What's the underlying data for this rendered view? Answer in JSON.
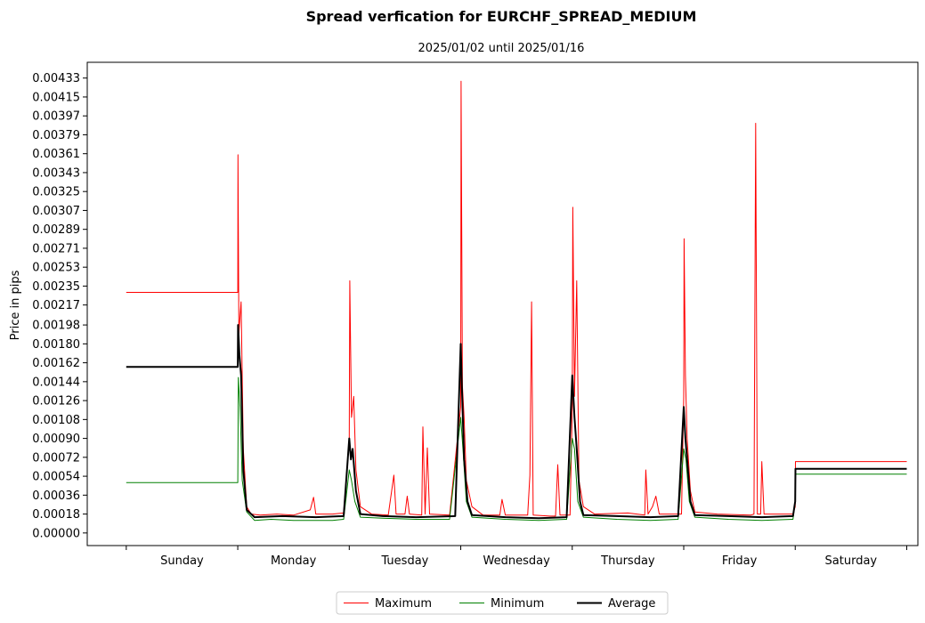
{
  "chart_data": {
    "type": "line",
    "title": "Spread verfication for EURCHF_SPREAD_MEDIUM",
    "subtitle": "2025/01/02 until 2025/01/16",
    "xlabel": "",
    "ylabel": "Price in pips",
    "x_range": [
      -0.35,
      7.1
    ],
    "ylim": [
      -0.00012,
      0.00448
    ],
    "grid": false,
    "legend_placement": "bottom-center",
    "yticks": [
      "0.00000",
      "0.00018",
      "0.00036",
      "0.00054",
      "0.00072",
      "0.00090",
      "0.00108",
      "0.00126",
      "0.00144",
      "0.00162",
      "0.00180",
      "0.00198",
      "0.00217",
      "0.00235",
      "0.00253",
      "0.00271",
      "0.00289",
      "0.00307",
      "0.00325",
      "0.00343",
      "0.00361",
      "0.00379",
      "0.00397",
      "0.00415",
      "0.00433"
    ],
    "categories": [
      "Sunday",
      "Monday",
      "Tuesday",
      "Wednesday",
      "Thursday",
      "Friday",
      "Saturday"
    ],
    "series": [
      {
        "name": "Maximum",
        "color": "#ff0000",
        "points": [
          [
            0,
            0.00229
          ],
          [
            1,
            0.00229
          ],
          [
            1.002,
            0.0036
          ],
          [
            1.01,
            0.0019
          ],
          [
            1.03,
            0.0022
          ],
          [
            1.05,
            0.0008
          ],
          [
            1.08,
            0.00025
          ],
          [
            1.12,
            0.00018
          ],
          [
            1.2,
            0.00017
          ],
          [
            1.35,
            0.00018
          ],
          [
            1.5,
            0.00017
          ],
          [
            1.65,
            0.00022
          ],
          [
            1.68,
            0.00034
          ],
          [
            1.7,
            0.00018
          ],
          [
            1.85,
            0.00018
          ],
          [
            1.95,
            0.00019
          ],
          [
            2.0,
            0.0009
          ],
          [
            2.005,
            0.0024
          ],
          [
            2.02,
            0.0011
          ],
          [
            2.04,
            0.0013
          ],
          [
            2.06,
            0.0006
          ],
          [
            2.1,
            0.00025
          ],
          [
            2.2,
            0.00018
          ],
          [
            2.35,
            0.00017
          ],
          [
            2.4,
            0.00055
          ],
          [
            2.42,
            0.00018
          ],
          [
            2.5,
            0.00018
          ],
          [
            2.52,
            0.00035
          ],
          [
            2.54,
            0.00018
          ],
          [
            2.65,
            0.00017
          ],
          [
            2.66,
            0.00101
          ],
          [
            2.68,
            0.00018
          ],
          [
            2.7,
            0.00081
          ],
          [
            2.72,
            0.00018
          ],
          [
            2.9,
            0.00017
          ],
          [
            3.0,
            0.0012
          ],
          [
            3.003,
            0.0043
          ],
          [
            3.015,
            0.0014
          ],
          [
            3.03,
            0.0011
          ],
          [
            3.05,
            0.0005
          ],
          [
            3.1,
            0.00025
          ],
          [
            3.2,
            0.00017
          ],
          [
            3.35,
            0.00017
          ],
          [
            3.37,
            0.00032
          ],
          [
            3.4,
            0.00017
          ],
          [
            3.6,
            0.00017
          ],
          [
            3.62,
            0.00055
          ],
          [
            3.635,
            0.0022
          ],
          [
            3.65,
            0.00017
          ],
          [
            3.8,
            0.00016
          ],
          [
            3.85,
            0.00016
          ],
          [
            3.87,
            0.00065
          ],
          [
            3.89,
            0.00017
          ],
          [
            3.98,
            0.00017
          ],
          [
            4.0,
            0.0012
          ],
          [
            4.005,
            0.0031
          ],
          [
            4.02,
            0.0013
          ],
          [
            4.04,
            0.0024
          ],
          [
            4.06,
            0.0005
          ],
          [
            4.1,
            0.00025
          ],
          [
            4.2,
            0.00018
          ],
          [
            4.5,
            0.00019
          ],
          [
            4.65,
            0.00017
          ],
          [
            4.66,
            0.0006
          ],
          [
            4.68,
            0.00018
          ],
          [
            4.72,
            0.00025
          ],
          [
            4.75,
            0.00035
          ],
          [
            4.78,
            0.00018
          ],
          [
            4.98,
            0.00018
          ],
          [
            5.0,
            0.0013
          ],
          [
            5.003,
            0.0028
          ],
          [
            5.015,
            0.0015
          ],
          [
            5.03,
            0.0009
          ],
          [
            5.06,
            0.0004
          ],
          [
            5.1,
            0.0002
          ],
          [
            5.3,
            0.00018
          ],
          [
            5.6,
            0.00017
          ],
          [
            5.63,
            0.00018
          ],
          [
            5.645,
            0.0039
          ],
          [
            5.66,
            0.00018
          ],
          [
            5.69,
            0.00018
          ],
          [
            5.7,
            0.00068
          ],
          [
            5.72,
            0.00018
          ],
          [
            5.98,
            0.00018
          ],
          [
            6.0,
            0.00025
          ],
          [
            6.002,
            0.00068
          ],
          [
            7.0,
            0.00068
          ]
        ]
      },
      {
        "name": "Minimum",
        "color": "#008000",
        "points": [
          [
            0,
            0.00048
          ],
          [
            1,
            0.00048
          ],
          [
            1.005,
            0.00148
          ],
          [
            1.02,
            0.0012
          ],
          [
            1.04,
            0.0005
          ],
          [
            1.08,
            0.0002
          ],
          [
            1.15,
            0.00012
          ],
          [
            1.3,
            0.00013
          ],
          [
            1.5,
            0.00012
          ],
          [
            1.7,
            0.00012
          ],
          [
            1.85,
            0.00012
          ],
          [
            1.95,
            0.00013
          ],
          [
            2.0,
            0.0006
          ],
          [
            2.02,
            0.0005
          ],
          [
            2.05,
            0.0003
          ],
          [
            2.1,
            0.00015
          ],
          [
            2.3,
            0.00014
          ],
          [
            2.6,
            0.00013
          ],
          [
            2.9,
            0.00013
          ],
          [
            3.0,
            0.0011
          ],
          [
            3.02,
            0.0008
          ],
          [
            3.05,
            0.0003
          ],
          [
            3.1,
            0.00015
          ],
          [
            3.4,
            0.00013
          ],
          [
            3.7,
            0.00012
          ],
          [
            3.95,
            0.00013
          ],
          [
            4.0,
            0.0009
          ],
          [
            4.02,
            0.0008
          ],
          [
            4.05,
            0.0003
          ],
          [
            4.1,
            0.00015
          ],
          [
            4.4,
            0.00013
          ],
          [
            4.7,
            0.00012
          ],
          [
            4.95,
            0.00013
          ],
          [
            5.0,
            0.0008
          ],
          [
            5.02,
            0.0007
          ],
          [
            5.05,
            0.0003
          ],
          [
            5.1,
            0.00015
          ],
          [
            5.4,
            0.00013
          ],
          [
            5.7,
            0.00012
          ],
          [
            5.98,
            0.00013
          ],
          [
            6.0,
            0.0003
          ],
          [
            6.002,
            0.00056
          ],
          [
            7.0,
            0.00056
          ]
        ]
      },
      {
        "name": "Average",
        "color": "#000000",
        "points": [
          [
            0,
            0.00158
          ],
          [
            1,
            0.00158
          ],
          [
            1.003,
            0.00198
          ],
          [
            1.015,
            0.0017
          ],
          [
            1.03,
            0.0015
          ],
          [
            1.05,
            0.0006
          ],
          [
            1.08,
            0.00022
          ],
          [
            1.15,
            0.00015
          ],
          [
            1.4,
            0.00016
          ],
          [
            1.7,
            0.00015
          ],
          [
            1.95,
            0.00016
          ],
          [
            2.0,
            0.0009
          ],
          [
            2.015,
            0.0007
          ],
          [
            2.03,
            0.0008
          ],
          [
            2.06,
            0.0004
          ],
          [
            2.1,
            0.00018
          ],
          [
            2.3,
            0.00016
          ],
          [
            2.6,
            0.00015
          ],
          [
            2.95,
            0.00016
          ],
          [
            3.0,
            0.0018
          ],
          [
            3.01,
            0.0014
          ],
          [
            3.03,
            0.0007
          ],
          [
            3.06,
            0.0003
          ],
          [
            3.1,
            0.00017
          ],
          [
            3.4,
            0.00015
          ],
          [
            3.7,
            0.00014
          ],
          [
            3.95,
            0.00015
          ],
          [
            4.0,
            0.0015
          ],
          [
            4.02,
            0.0011
          ],
          [
            4.04,
            0.0008
          ],
          [
            4.07,
            0.0003
          ],
          [
            4.1,
            0.00017
          ],
          [
            4.4,
            0.00016
          ],
          [
            4.7,
            0.00015
          ],
          [
            4.95,
            0.00016
          ],
          [
            5.0,
            0.0012
          ],
          [
            5.015,
            0.0009
          ],
          [
            5.03,
            0.0007
          ],
          [
            5.06,
            0.0003
          ],
          [
            5.1,
            0.00017
          ],
          [
            5.4,
            0.00016
          ],
          [
            5.7,
            0.00015
          ],
          [
            5.98,
            0.00016
          ],
          [
            6.0,
            0.0003
          ],
          [
            6.002,
            0.00061
          ],
          [
            7.0,
            0.00061
          ]
        ]
      }
    ]
  }
}
